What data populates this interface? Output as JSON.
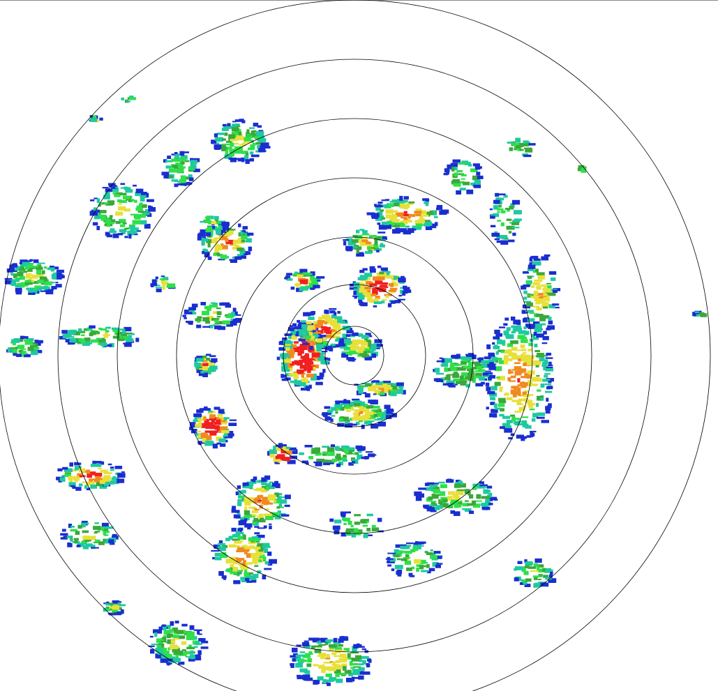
{
  "radar": {
    "range_ring_count": 7,
    "colors": {
      "ring": "#000000",
      "background": "#ffffff",
      "weak_echo": "#1a2ed0",
      "light_echo": "#1fc9a0",
      "moderate_echo": "#2ee04a",
      "medium_echo": "#3aa83a",
      "strong_echo": "#e8e03a",
      "heavy_echo": "#f08a20",
      "intense_echo": "#f02020"
    }
  }
}
